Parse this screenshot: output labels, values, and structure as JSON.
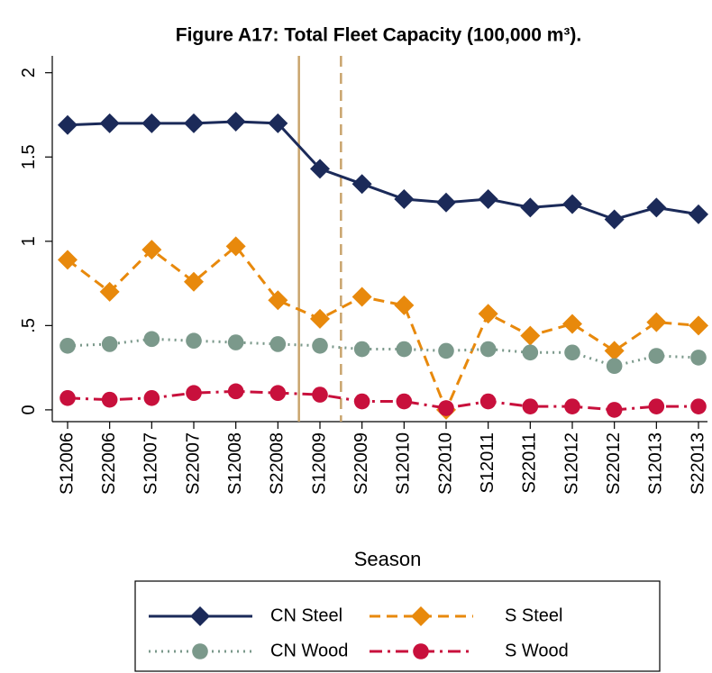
{
  "chart_data": {
    "type": "line",
    "title": "Figure A17: Total Fleet Capacity (100,000 m³).",
    "x_label": "Season",
    "categories": [
      "S12006",
      "S22006",
      "S12007",
      "S22007",
      "S12008",
      "S22008",
      "S12009",
      "S22009",
      "S12010",
      "S22010",
      "S12011",
      "S22011",
      "S12012",
      "S22012",
      "S12013",
      "S22013"
    ],
    "ylim": [
      -0.07,
      2.1
    ],
    "yticks": [
      0,
      {
        "value": 0.5,
        "label": ".5"
      },
      1,
      1.5,
      2
    ],
    "reference_lines": [
      {
        "position": 5.5,
        "style": "solid",
        "color": "#c9a46c"
      },
      {
        "position": 6.5,
        "style": "dashed",
        "color": "#c9a46c"
      }
    ],
    "series": [
      {
        "name": "CN Steel",
        "color": "#1b2a59",
        "line_style": "solid",
        "marker": "diamond",
        "values": [
          1.69,
          1.7,
          1.7,
          1.7,
          1.71,
          1.7,
          1.43,
          1.34,
          1.25,
          1.23,
          1.25,
          1.2,
          1.22,
          1.13,
          1.2,
          1.16
        ]
      },
      {
        "name": "S Steel",
        "color": "#e8890c",
        "line_style": "dashed",
        "marker": "diamond",
        "values": [
          0.89,
          0.7,
          0.95,
          0.76,
          0.97,
          0.65,
          0.54,
          0.67,
          0.62,
          0.0,
          0.57,
          0.44,
          0.51,
          0.35,
          0.52,
          0.5
        ]
      },
      {
        "name": "CN Wood",
        "color": "#7b998b",
        "line_style": "dotted",
        "marker": "circle",
        "values": [
          0.38,
          0.39,
          0.42,
          0.41,
          0.4,
          0.39,
          0.38,
          0.36,
          0.36,
          0.35,
          0.36,
          0.34,
          0.34,
          0.26,
          0.32,
          0.31
        ]
      },
      {
        "name": "S Wood",
        "color": "#c8103c",
        "line_style": "dashdot",
        "marker": "circle",
        "values": [
          0.07,
          0.06,
          0.07,
          0.1,
          0.11,
          0.1,
          0.09,
          0.05,
          0.05,
          0.01,
          0.05,
          0.02,
          0.02,
          0.0,
          0.02,
          0.02
        ]
      }
    ]
  }
}
